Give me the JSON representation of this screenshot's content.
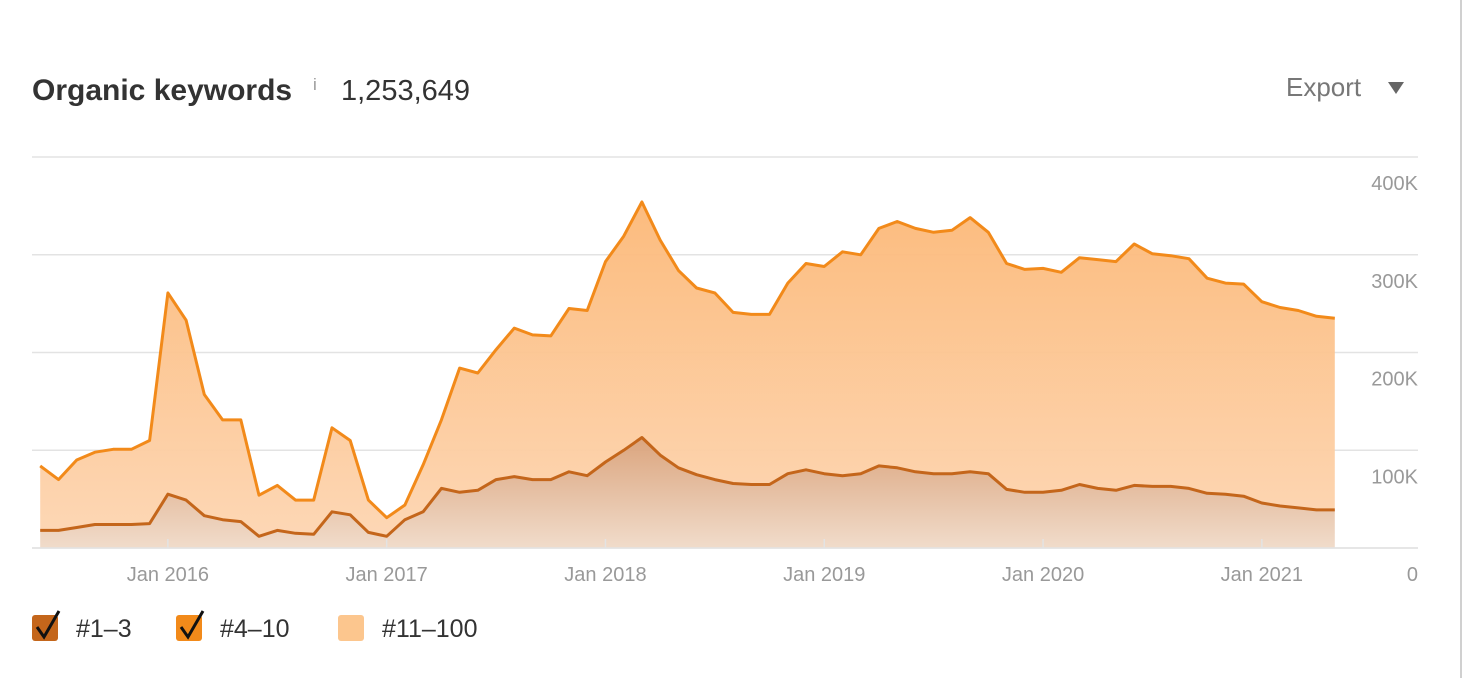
{
  "previous_chart": {
    "xtick_labels": [
      "Jan 2016",
      "Jan 2017",
      "Jan 2018",
      "Jan 2019",
      "Jan 2020",
      "Jan 2021"
    ],
    "ytick_label": "0"
  },
  "chart_data": {
    "type": "area",
    "title": "Organic keywords",
    "info_icon": "i",
    "title_value": "1,253,649",
    "export_button": "Export",
    "stacked": true,
    "grid": true,
    "legend": "bottom",
    "xlim": [
      "2015-05",
      "2021-06"
    ],
    "xticks": [
      {
        "value": "2016-01",
        "label": "Jan 2016"
      },
      {
        "value": "2017-01",
        "label": "Jan 2017"
      },
      {
        "value": "2018-01",
        "label": "Jan 2018"
      },
      {
        "value": "2019-01",
        "label": "Jan 2019"
      },
      {
        "value": "2020-01",
        "label": "Jan 2020"
      },
      {
        "value": "2021-01",
        "label": "Jan 2021"
      }
    ],
    "ylim": [
      0,
      400000
    ],
    "yticks": [
      0,
      {
        "value": 100000,
        "label": "100K"
      },
      {
        "value": 200000,
        "label": "200K"
      },
      {
        "value": 300000,
        "label": "300K"
      },
      {
        "value": 400000,
        "label": "400K"
      }
    ],
    "x": [
      "2015-06",
      "2015-07",
      "2015-08",
      "2015-09",
      "2015-10",
      "2015-11",
      "2015-12",
      "2016-01",
      "2016-02",
      "2016-03",
      "2016-04",
      "2016-05",
      "2016-06",
      "2016-07",
      "2016-08",
      "2016-09",
      "2016-10",
      "2016-11",
      "2016-12",
      "2017-01",
      "2017-02",
      "2017-03",
      "2017-04",
      "2017-05",
      "2017-06",
      "2017-07",
      "2017-08",
      "2017-09",
      "2017-10",
      "2017-11",
      "2017-12",
      "2018-01",
      "2018-02",
      "2018-03",
      "2018-04",
      "2018-05",
      "2018-06",
      "2018-07",
      "2018-08",
      "2018-09",
      "2018-10",
      "2018-11",
      "2018-12",
      "2019-01",
      "2019-02",
      "2019-03",
      "2019-04",
      "2019-05",
      "2019-06",
      "2019-07",
      "2019-08",
      "2019-09",
      "2019-10",
      "2019-11",
      "2019-12",
      "2020-01",
      "2020-02",
      "2020-03",
      "2020-04",
      "2020-05",
      "2020-06",
      "2020-07",
      "2020-08",
      "2020-09",
      "2020-10",
      "2020-11",
      "2020-12",
      "2021-01",
      "2021-02",
      "2021-03",
      "2021-04",
      "2021-05"
    ],
    "series": [
      {
        "name": "#1–3",
        "color": "#c4661b",
        "checked": true,
        "values": [
          18000,
          18000,
          21000,
          24000,
          24000,
          24000,
          25000,
          55000,
          49000,
          33000,
          29000,
          27000,
          12000,
          18000,
          15000,
          14000,
          37000,
          34000,
          16000,
          12000,
          29000,
          37000,
          61000,
          57000,
          59000,
          70000,
          73000,
          70000,
          70000,
          78000,
          74000,
          88000,
          100000,
          113000,
          95000,
          82000,
          75000,
          70000,
          66000,
          65000,
          65000,
          76000,
          80000,
          76000,
          74000,
          76000,
          84000,
          82000,
          78000,
          76000,
          76000,
          78000,
          76000,
          60000,
          57000,
          57000,
          59000,
          65000,
          61000,
          59000,
          64000,
          63000,
          63000,
          61000,
          56000,
          55000,
          53000,
          46000,
          43000,
          41000,
          39000,
          39000
        ]
      },
      {
        "name": "#4–10",
        "color": "#f28a1a",
        "checked": true,
        "values": [
          66000,
          52000,
          69000,
          74000,
          77000,
          77000,
          85000,
          206000,
          184000,
          124000,
          102000,
          104000,
          42000,
          46000,
          34000,
          35000,
          86000,
          76000,
          33000,
          19000,
          15000,
          48000,
          70000,
          127000,
          120000,
          133000,
          152000,
          148000,
          147000,
          167000,
          169000,
          205000,
          219000,
          241000,
          220000,
          202000,
          191000,
          191000,
          175000,
          174000,
          174000,
          195000,
          211000,
          212000,
          229000,
          224000,
          243000,
          252000,
          249000,
          247000,
          249000,
          260000,
          247000,
          231000,
          228000,
          229000,
          223000,
          232000,
          234000,
          234000,
          247000,
          238000,
          236000,
          235000,
          220000,
          216000,
          217000,
          206000,
          203000,
          202000,
          198000,
          196000
        ]
      },
      {
        "name": "#11–100",
        "color": "#fcc68e",
        "checked": false
      }
    ]
  }
}
